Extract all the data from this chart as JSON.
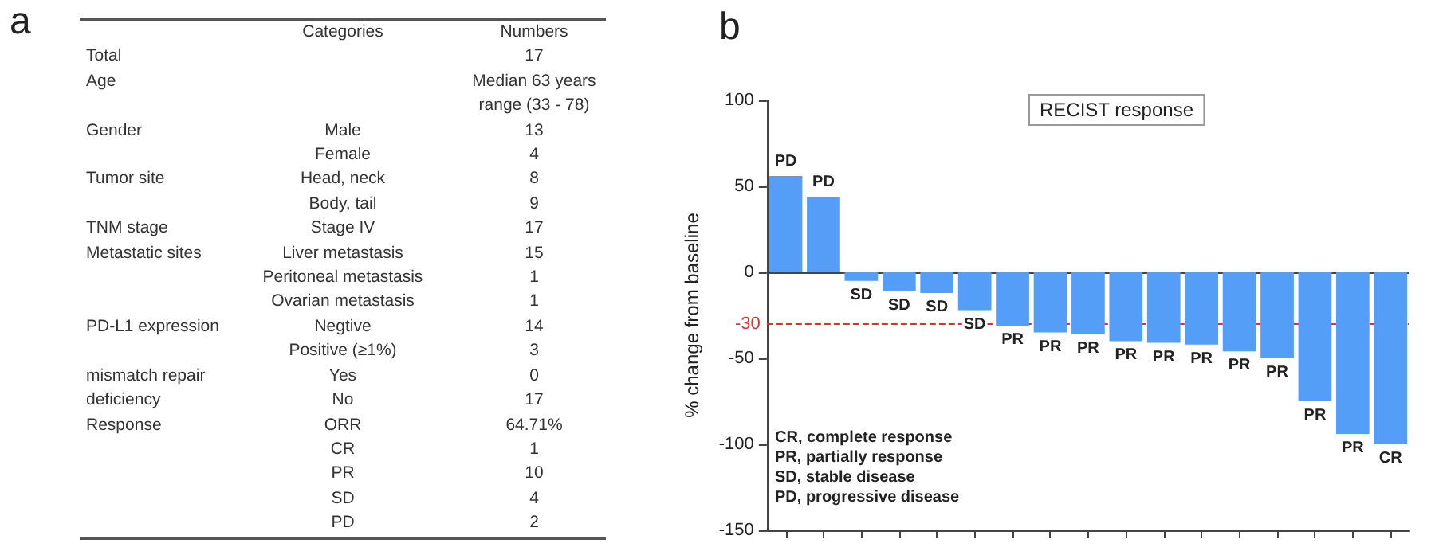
{
  "chart_data": [
    {
      "type": "other",
      "title": "a",
      "categories": [
        "Categories",
        "Numbers"
      ],
      "y_categories": [
        "Total",
        "Age",
        null,
        "Gender",
        null,
        "Tumor site",
        null,
        "TNM stage",
        "Metastatic sites",
        null,
        null,
        "PD-L1 expression",
        null,
        "mismatch repair",
        "deficiency",
        "Response",
        null,
        null,
        null,
        null
      ],
      "cell_labels": [
        [
          null,
          "17"
        ],
        [
          null,
          "Median 63 years"
        ],
        [
          null,
          "range (33 - 78)"
        ],
        [
          "Male",
          "13"
        ],
        [
          "Female",
          "4"
        ],
        [
          "Head, neck",
          "8"
        ],
        [
          "Body, tail",
          "9"
        ],
        [
          "Stage IV",
          "17"
        ],
        [
          "Liver metastasis",
          "15"
        ],
        [
          "Peritoneal metastasis",
          "1"
        ],
        [
          "Ovarian metastasis",
          "1"
        ],
        [
          "Negtive",
          "14"
        ],
        [
          "Positive (≥1%)",
          "3"
        ],
        [
          "Yes",
          "0"
        ],
        [
          "No",
          "17"
        ],
        [
          "ORR",
          "64.71%"
        ],
        [
          "CR",
          "1"
        ],
        [
          "PR",
          "10"
        ],
        [
          "SD",
          "4"
        ],
        [
          "PD",
          "2"
        ]
      ]
    },
    {
      "type": "bar",
      "title": "b",
      "ylabel": "% change from baseline",
      "categories": [
        null,
        null,
        null,
        null,
        null,
        null,
        null,
        null,
        null,
        null,
        null,
        null,
        null,
        null,
        null,
        null,
        null
      ],
      "values": [
        56,
        44,
        -5,
        -11,
        -12,
        -22,
        -31,
        -35,
        -36,
        -40,
        -41,
        -42,
        -46,
        -50,
        -75,
        -94,
        -100
      ],
      "value_labels": [
        "PD",
        "PD",
        "SD",
        "SD",
        "SD",
        "SD",
        "PR",
        "PR",
        "PR",
        "PR",
        "PR",
        "PR",
        "PR",
        "PR",
        "PR",
        "PR",
        "CR"
      ],
      "color": "#559ef8",
      "ylim": [
        -150,
        100
      ],
      "yticks": [
        -150,
        -100,
        -50,
        0,
        50,
        100
      ],
      "ref_lines": [
        {
          "axis": "y",
          "value": -30,
          "label": "-30",
          "color": "#e03030",
          "line_style": "dashed"
        },
        {
          "axis": "y",
          "value": 0,
          "label": null,
          "color": "#444444",
          "line_style": "solid"
        }
      ],
      "annotations": [
        "RECIST response",
        "CR, complete response",
        "PR, partially response",
        "SD, stable disease",
        "PD, progressive disease"
      ],
      "grid": false
    }
  ]
}
